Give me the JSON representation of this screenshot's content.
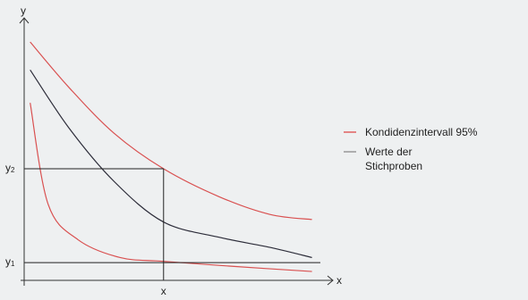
{
  "chart_data": {
    "type": "line",
    "xlabel": "x",
    "ylabel": "y",
    "xlim": [
      0,
      10
    ],
    "ylim": [
      0,
      10
    ],
    "grid": false,
    "legend_position": "right",
    "ticks": {
      "x": [
        {
          "label": "x",
          "value": 4.65
        }
      ],
      "y": [
        {
          "label": "y",
          "sub": "1",
          "value": 0.7
        },
        {
          "label": "y",
          "sub": "2",
          "value": 4.4
        }
      ]
    },
    "legend": [
      {
        "label": "Kondidenzintervall 95%",
        "color": "#e06060"
      },
      {
        "label": "Werte der Stichproben",
        "lines": [
          "Werte der",
          "Stichproben"
        ],
        "color": "#999999"
      }
    ],
    "series": [
      {
        "key": "upper",
        "color": "#d95050",
        "x": [
          0.2,
          1.5,
          3.0,
          4.65,
          6.5,
          8.2,
          9.6
        ],
        "y": [
          9.4,
          7.6,
          5.8,
          4.4,
          3.3,
          2.6,
          2.4
        ]
      },
      {
        "key": "sample",
        "color": "#2d2d3a",
        "x": [
          0.2,
          1.5,
          3.0,
          4.65,
          6.5,
          8.2,
          9.6
        ],
        "y": [
          8.3,
          6.0,
          3.9,
          2.3,
          1.7,
          1.3,
          0.9
        ]
      },
      {
        "key": "lower",
        "color": "#d95050",
        "x": [
          0.2,
          0.8,
          1.8,
          3.2,
          4.65,
          7.0,
          9.6
        ],
        "y": [
          7.0,
          3.0,
          1.6,
          0.9,
          0.75,
          0.55,
          0.35
        ]
      }
    ]
  }
}
